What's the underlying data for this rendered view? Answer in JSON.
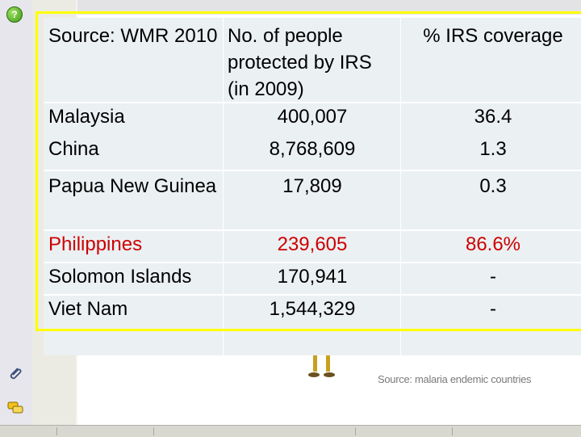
{
  "table": {
    "headers": {
      "source": "Source:  WMR 2010",
      "people": "No. of people protected by IRS (in 2009)",
      "coverage": "% IRS coverage"
    },
    "rows": [
      {
        "country": "Malaysia",
        "people": "400,007",
        "coverage": "36.4"
      },
      {
        "country": "China",
        "people": "8,768,609",
        "coverage": "1.3"
      },
      {
        "country": "Papua New Guinea",
        "people": "17,809",
        "coverage": "0.3"
      },
      {
        "country": "Philippines",
        "people": "239,605",
        "coverage": "86.6%"
      },
      {
        "country": "Solomon Islands",
        "people": "170,941",
        "coverage": "-"
      },
      {
        "country": "Viet Nam",
        "people": "1,544,329",
        "coverage": "-"
      }
    ]
  },
  "caption": "Source: malaria endemic countries",
  "colors": {
    "highlight_row": "#cc0000",
    "frame": "#ffff00",
    "table_bg": "#ebf0f3"
  },
  "icons": [
    "help-icon",
    "attach-icon",
    "chat-icon"
  ]
}
